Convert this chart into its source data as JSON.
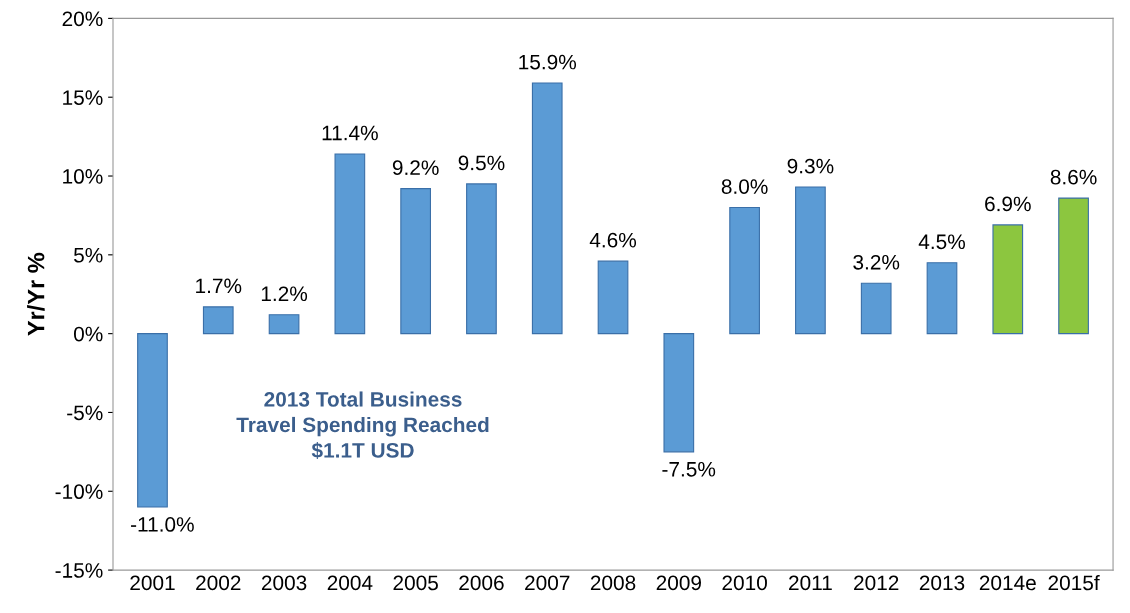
{
  "chart_data": {
    "type": "bar",
    "ylabel": "Yr/Yr %",
    "categories": [
      "2001",
      "2002",
      "2003",
      "2004",
      "2005",
      "2006",
      "2007",
      "2008",
      "2009",
      "2010",
      "2011",
      "2012",
      "2013",
      "2014e",
      "2015f"
    ],
    "values": [
      -11.0,
      1.7,
      1.2,
      11.4,
      9.2,
      9.5,
      15.9,
      4.6,
      -7.5,
      8.0,
      9.3,
      3.2,
      4.5,
      6.9,
      8.6
    ],
    "value_labels": [
      "-11.0%",
      "1.7%",
      "1.2%",
      "11.4%",
      "9.2%",
      "9.5%",
      "15.9%",
      "4.6%",
      "-7.5%",
      "8.0%",
      "9.3%",
      "3.2%",
      "4.5%",
      "6.9%",
      "8.6%"
    ],
    "colors": [
      "#5b9bd5",
      "#5b9bd5",
      "#5b9bd5",
      "#5b9bd5",
      "#5b9bd5",
      "#5b9bd5",
      "#5b9bd5",
      "#5b9bd5",
      "#5b9bd5",
      "#5b9bd5",
      "#5b9bd5",
      "#5b9bd5",
      "#5b9bd5",
      "#8cc63f",
      "#8cc63f"
    ],
    "ylim": [
      -15,
      20
    ],
    "yticks": [
      {
        "value": -15,
        "label": "-15%"
      },
      {
        "value": -10,
        "label": "-10%"
      },
      {
        "value": -5,
        "label": "-5%"
      },
      {
        "value": 0,
        "label": "0%"
      },
      {
        "value": 5,
        "label": "5%"
      },
      {
        "value": 10,
        "label": "10%"
      },
      {
        "value": 15,
        "label": "15%"
      },
      {
        "value": 20,
        "label": "20%"
      }
    ],
    "annotations": [
      "2013 Total Business\nTravel Spending Reached\n$1.1T USD"
    ],
    "grid": false
  }
}
